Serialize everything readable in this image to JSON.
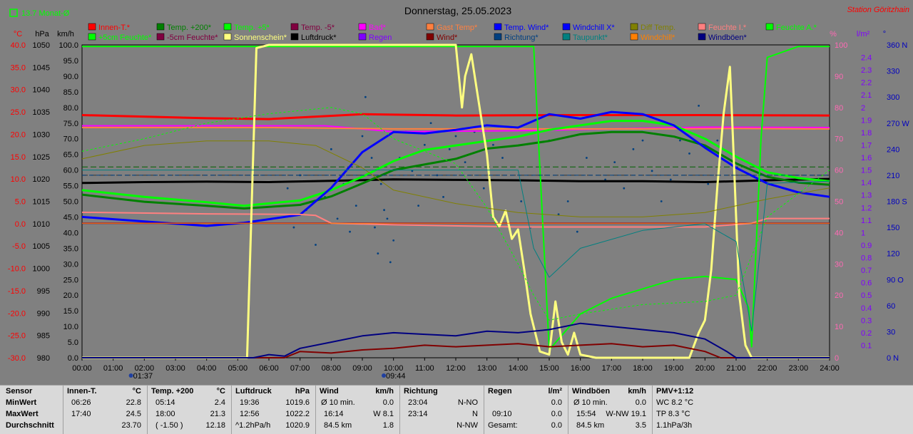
{
  "header": {
    "title": "Donnerstag, 25.05.2023",
    "station": "Station Göritzhain",
    "indicator": "13.7 Monat-Ø"
  },
  "chart_data": {
    "type": "line",
    "title": "Donnerstag, 25.05.2023",
    "x_ticks": [
      "00:00",
      "01:00",
      "02:00",
      "03:00",
      "04:00",
      "05:00",
      "06:00",
      "07:00",
      "08:00",
      "09:00",
      "10:00",
      "11:00",
      "12:00",
      "13:00",
      "14:00",
      "15:00",
      "16:00",
      "17:00",
      "18:00",
      "19:00",
      "20:00",
      "21:00",
      "22:00",
      "23:00",
      "24:00"
    ],
    "x_markers": [
      "01:37",
      "09:44"
    ],
    "axes": {
      "temp": {
        "unit": "°C",
        "min": -30,
        "max": 40,
        "ticks": [
          "40.0",
          "35.0",
          "30.0",
          "25.0",
          "20.0",
          "15.0",
          "10.0",
          "5.0",
          "0.0",
          "-5.0",
          "-10.0",
          "-15.0",
          "-20.0",
          "-25.0",
          "-30.0"
        ],
        "color": "#ff0000"
      },
      "pressure": {
        "unit": "hPa",
        "min": 980,
        "max": 1050,
        "ticks": [
          "1050",
          "1045",
          "1040",
          "1035",
          "1030",
          "1025",
          "1020",
          "1015",
          "1010",
          "1005",
          "1000",
          "995",
          "990",
          "985",
          "980"
        ],
        "color": "#000000"
      },
      "speed": {
        "unit": "km/h",
        "min": 0,
        "max": 100,
        "ticks": [
          "100.0",
          "95.0",
          "90.0",
          "85.0",
          "80.0",
          "75.0",
          "70.0",
          "65.0",
          "60.0",
          "55.0",
          "50.0",
          "45.0",
          "40.0",
          "35.0",
          "30.0",
          "25.0",
          "20.0",
          "15.0",
          "10.0",
          "5.0",
          "0.0"
        ],
        "color": "#000000"
      },
      "percent": {
        "unit": "%",
        "min": 0,
        "max": 100,
        "ticks": [
          "100",
          "90",
          "80",
          "70",
          "60",
          "50",
          "40",
          "30",
          "20",
          "10",
          "0"
        ],
        "color": "#ff69b4"
      },
      "rain": {
        "unit": "l/m²",
        "min": 0,
        "max": 2.5,
        "ticks": [
          "2.4",
          "2.3",
          "2.2",
          "2.1",
          "2",
          "1.9",
          "1.8",
          "1.7",
          "1.6",
          "1.5",
          "1.4",
          "1.3",
          "1.2",
          "1.1",
          "1",
          "0.9",
          "0.8",
          "0.7",
          "0.6",
          "0.5",
          "0.4",
          "0.3",
          "0.2",
          "0.1"
        ],
        "color": "#8000ff"
      },
      "direction": {
        "unit": "°",
        "min": 0,
        "max": 360,
        "ticks": [
          "360 N",
          "330",
          "300",
          "270 W",
          "240",
          "210",
          "180 S",
          "150",
          "120",
          "90 O",
          "60",
          "30",
          "0 N"
        ],
        "color": "#0000c0"
      }
    },
    "legend": [
      {
        "name": "Innen-T.*",
        "color": "#ff0000"
      },
      {
        "name": "Temp. +200*",
        "color": "#008000"
      },
      {
        "name": "Temp. +5*",
        "color": "#00ff00"
      },
      {
        "name": "Temp. -5*",
        "color": "#800040"
      },
      {
        "name": "Bad*",
        "color": "#ff00ff"
      },
      {
        "name": "Gast Temp*",
        "color": "#ff8040"
      },
      {
        "name": "Temp. Wind*",
        "color": "#0000ff"
      },
      {
        "name": "Windchill X*",
        "color": "#0000ff"
      },
      {
        "name": "Diff Temp.",
        "color": "#808000"
      },
      {
        "name": "Feuchte I.*",
        "color": "#ff8080"
      },
      {
        "name": "Feuchte A.*",
        "color": "#00ff00"
      },
      {
        "name": "+5cm Feuchte*",
        "color": "#00ff00"
      },
      {
        "name": "-5cm Feuchte*",
        "color": "#800040"
      },
      {
        "name": "Sonnenschein*",
        "color": "#ffff80"
      },
      {
        "name": "Luftdruck*",
        "color": "#000000"
      },
      {
        "name": "Regen",
        "color": "#8000ff"
      },
      {
        "name": "Wind*",
        "color": "#800000"
      },
      {
        "name": "Richtung*",
        "color": "#004080"
      },
      {
        "name": "Taupunkt*",
        "color": "#008080"
      },
      {
        "name": "Windchill*",
        "color": "#ff8000"
      },
      {
        "name": "Windböen*",
        "color": "#000080"
      }
    ],
    "series": [
      {
        "name": "Innen-T.*",
        "axis": "temp",
        "color": "#ff0000",
        "width": 3,
        "x": [
          0,
          4,
          6,
          9,
          12,
          16,
          20,
          24
        ],
        "y": [
          24.3,
          23.6,
          23.4,
          24.5,
          24.2,
          24.3,
          24.3,
          24.2
        ]
      },
      {
        "name": "Bad*",
        "axis": "temp",
        "color": "#ff00ff",
        "width": 2,
        "x": [
          0,
          6,
          7.8,
          10,
          14,
          20,
          24
        ],
        "y": [
          21.9,
          21.9,
          21.9,
          20.6,
          20.8,
          21.6,
          21.5
        ]
      },
      {
        "name": "Gast Temp*",
        "axis": "temp",
        "color": "#ff8040",
        "width": 2,
        "x": [
          0,
          6,
          10,
          14,
          18,
          21,
          24
        ],
        "y": [
          21.5,
          21.5,
          21.2,
          21.2,
          21.2,
          21.3,
          21.2
        ]
      },
      {
        "name": "Luftdruck*",
        "axis": "pressure",
        "color": "#000000",
        "width": 3,
        "x": [
          0,
          2,
          4,
          6,
          8,
          10,
          12,
          14,
          16,
          18,
          20,
          22,
          24
        ],
        "y": [
          1019.1,
          1019.3,
          1019.4,
          1019.3,
          1019.6,
          1019.9,
          1019.8,
          1019.7,
          1019.5,
          1019.5,
          1019.3,
          1019.7,
          1020.0
        ]
      },
      {
        "name": "Temp. +200*",
        "axis": "temp",
        "color": "#008000",
        "width": 3,
        "x": [
          0,
          2,
          4,
          5.2,
          7,
          8,
          9,
          10,
          12,
          13,
          14,
          15,
          16,
          17,
          18,
          19,
          20,
          21,
          22,
          23,
          24
        ],
        "y": [
          6.5,
          4.9,
          4.0,
          3.4,
          4.2,
          6.1,
          9.0,
          12.0,
          14.5,
          16.8,
          17.5,
          18.5,
          20.0,
          20.5,
          20.5,
          19.5,
          17.5,
          13.5,
          10.5,
          9.2,
          8.7
        ]
      },
      {
        "name": "Temp. +5*",
        "axis": "temp",
        "color": "#00ff00",
        "width": 3,
        "x": [
          0,
          2,
          4,
          5.2,
          7,
          8,
          9,
          10,
          11,
          12,
          13,
          14,
          15,
          16,
          17,
          18,
          19,
          20,
          21,
          22,
          23,
          24
        ],
        "y": [
          7.5,
          6.0,
          4.8,
          4.0,
          5.2,
          7.5,
          10.5,
          14.0,
          16.5,
          17.5,
          18.5,
          19.5,
          21.0,
          22.0,
          23.0,
          23.0,
          22.0,
          19.0,
          15.0,
          11.5,
          10.2,
          9.5
        ]
      },
      {
        "name": "Temp. Wind*",
        "axis": "temp",
        "color": "#0000ff",
        "width": 3,
        "x": [
          0,
          2,
          4,
          5.2,
          7,
          8,
          9,
          10,
          11,
          12,
          13,
          14,
          15,
          16,
          17,
          18,
          19,
          20,
          21,
          22,
          23,
          24
        ],
        "y": [
          1.5,
          0.5,
          -0.5,
          0.2,
          2.0,
          8.0,
          16.0,
          20.5,
          20.2,
          21.0,
          22.0,
          21.5,
          24.5,
          23.5,
          25.0,
          24.5,
          22.0,
          17.0,
          12.5,
          9.0,
          7.0,
          6.0
        ]
      },
      {
        "name": "Temp. -5*",
        "axis": "temp",
        "color": "#800040",
        "width": 2,
        "x": [
          0,
          24
        ],
        "y": [
          0.1,
          0.1
        ]
      },
      {
        "name": "Feuchte I.*",
        "axis": "percent",
        "color": "#ff8080",
        "width": 2,
        "x": [
          0,
          4,
          7,
          7.5,
          8,
          10,
          14,
          20,
          21.5,
          22,
          24
        ],
        "y": [
          46.5,
          46.0,
          45.8,
          45.5,
          43.0,
          42.5,
          41.8,
          41.8,
          43.0,
          44.5,
          44.5
        ]
      },
      {
        "name": "Feuchte A.*",
        "axis": "percent",
        "color": "#00ff00",
        "width": 2,
        "x": [
          0,
          14.5,
          15,
          16,
          17,
          18,
          19,
          20,
          21,
          21.4,
          21.5,
          21.8,
          22,
          23,
          24
        ],
        "y": [
          99.5,
          99.5,
          2.5,
          14.0,
          19.0,
          22.0,
          25.0,
          26.0,
          25.0,
          16.0,
          3.5,
          70.0,
          96.0,
          99.5,
          99.5
        ]
      },
      {
        "name": "Sonnenschein*",
        "axis": "percent",
        "color": "#ffff80",
        "width": 3,
        "x": [
          0,
          5.3,
          5.6,
          6,
          12,
          12.2,
          12.3,
          12.5,
          12.7,
          13,
          13.2,
          13.4,
          13.6,
          13.8,
          14,
          14.2,
          14.4,
          14.7,
          15,
          15.2,
          15.4,
          15.6,
          15.8,
          16,
          16.5,
          19.5,
          19.8,
          20,
          20.2,
          20.4,
          20.6,
          20.8,
          20.9,
          21,
          21.1,
          21.3,
          21.5,
          24
        ],
        "y": [
          0,
          0,
          99,
          100,
          100,
          80,
          90,
          97,
          84,
          65,
          45,
          42,
          47,
          38,
          41,
          28,
          14,
          2,
          1,
          18,
          5,
          1,
          8,
          1,
          0,
          0,
          8,
          12,
          28,
          55,
          78,
          93,
          70,
          45,
          20,
          4,
          0,
          0
        ]
      },
      {
        "name": "Wind*",
        "axis": "speed",
        "color": "#800000",
        "width": 2,
        "x": [
          0,
          6.5,
          7,
          8,
          9,
          10,
          11,
          12,
          13,
          14,
          15,
          16,
          17,
          18,
          19,
          20,
          20.5,
          24
        ],
        "y": [
          0,
          0,
          2,
          1.5,
          2.5,
          3,
          4,
          3.5,
          4,
          4.5,
          3.5,
          4,
          4.5,
          3.5,
          4,
          2,
          0,
          0
        ]
      },
      {
        "name": "Windböen*",
        "axis": "speed",
        "color": "#000080",
        "width": 2,
        "x": [
          0,
          5.5,
          6,
          6.5,
          7,
          8,
          9,
          10,
          11,
          12,
          13,
          14,
          15,
          16,
          17,
          18,
          19,
          20,
          20.7,
          21,
          24
        ],
        "y": [
          0,
          0,
          1,
          0.5,
          3,
          5,
          7,
          8,
          7.5,
          7,
          8.5,
          8,
          9,
          11,
          10,
          9,
          8,
          6,
          2,
          0,
          0
        ]
      },
      {
        "name": "Windchill*",
        "axis": "temp",
        "color": "#ff8000",
        "width": 1,
        "x": [
          0,
          24
        ],
        "y": [
          0.1,
          0.1
        ]
      },
      {
        "name": "Diff Temp.",
        "axis": "temp",
        "color": "#808000",
        "width": 1,
        "dash": "",
        "x": [
          0,
          2,
          4,
          6,
          7.5,
          9,
          10,
          12,
          14,
          16,
          18,
          20,
          22,
          24
        ],
        "y": [
          14.5,
          17.5,
          18.5,
          18.5,
          17.5,
          12.5,
          7.5,
          4.5,
          2.5,
          1.5,
          1.5,
          2.5,
          5.5,
          8.0
        ]
      },
      {
        "name": "+5cm Feuchte*",
        "axis": "percent",
        "color": "#00ff00",
        "width": 1,
        "dash": "3,3",
        "x": [
          0,
          2,
          4,
          6,
          8,
          9,
          10,
          12,
          13,
          14,
          14.5,
          15,
          16,
          18,
          20,
          21,
          22,
          24
        ],
        "y": [
          66,
          70,
          75,
          78,
          80,
          78,
          70,
          62,
          48,
          30,
          20,
          12,
          14,
          17,
          18,
          20,
          45,
          60
        ]
      },
      {
        "name": "Taupunkt*",
        "axis": "temp",
        "color": "#008080",
        "width": 1,
        "x": [
          0,
          14,
          14.5,
          15,
          16,
          18,
          20,
          21,
          21.5,
          22,
          24
        ],
        "y": [
          12.0,
          12.0,
          -5.5,
          -12.0,
          -5.5,
          -1.5,
          0,
          -4,
          -24,
          9,
          9.5
        ]
      },
      {
        "name": "Richtung*",
        "axis": "direction",
        "color": "#004080",
        "width": 1,
        "dash": "6,4",
        "x": [
          0,
          24
        ],
        "y": [
          210,
          210
        ]
      }
    ],
    "scatter": {
      "name": "Richtung points",
      "axis": "direction",
      "color": "#004080",
      "x": [
        6.6,
        6.8,
        7.0,
        7.2,
        7.5,
        7.8,
        8.0,
        8.2,
        8.4,
        8.6,
        8.8,
        9.0,
        9.1,
        9.2,
        9.3,
        9.4,
        9.5,
        9.6,
        9.7,
        9.8,
        9.9,
        10.0,
        10.2,
        10.4,
        10.6,
        10.8,
        11.0,
        11.2,
        11.4,
        11.6,
        11.8,
        12.0,
        12.3,
        12.6,
        12.9,
        13.2,
        13.5,
        13.8,
        14.1,
        14.4,
        14.7,
        15.0,
        15.3,
        15.6,
        15.9,
        16.2,
        16.5,
        16.8,
        17.1,
        17.4,
        17.7,
        18.0,
        18.3,
        18.6,
        18.9,
        19.2,
        19.5,
        19.8,
        20.1,
        20.4
      ],
      "y": [
        195,
        150,
        210,
        170,
        130,
        185,
        240,
        160,
        200,
        145,
        175,
        255,
        300,
        280,
        230,
        150,
        120,
        200,
        170,
        160,
        110,
        135,
        230,
        260,
        215,
        175,
        245,
        270,
        210,
        185,
        240,
        255,
        225,
        260,
        195,
        245,
        230,
        265,
        180,
        150,
        210,
        250,
        165,
        180,
        145,
        230,
        270,
        205,
        225,
        195,
        240,
        250,
        215,
        180,
        205,
        250,
        235,
        290,
        200,
        250
      ]
    }
  },
  "stats": {
    "sensor": {
      "header": "Sensor",
      "rows": [
        "MinWert",
        "MaxWert",
        "Durchschnitt"
      ]
    },
    "innen": {
      "header": "Innen-T.",
      "unit": "°C",
      "rows": [
        [
          "06:26",
          "22.8"
        ],
        [
          "17:40",
          "24.5"
        ],
        [
          "",
          "23.70"
        ]
      ]
    },
    "temp200": {
      "header": "Temp. +200",
      "unit": "°C",
      "rows": [
        [
          "05:14",
          "2.4"
        ],
        [
          "18:00",
          "21.3"
        ],
        [
          "( -1.50 )",
          "12.18"
        ]
      ]
    },
    "luftdruck": {
      "header": "Luftdruck",
      "unit": "hPa",
      "rows": [
        [
          "19:36",
          "1019.6"
        ],
        [
          "12:56",
          "1022.2"
        ],
        [
          "^1.2hPa/h",
          "1020.9"
        ]
      ]
    },
    "wind": {
      "header": "Wind",
      "unit": "km/h",
      "rows": [
        [
          "Ø 10 min.",
          "0.0"
        ],
        [
          "16:14",
          "W 8.1"
        ],
        [
          "84.5 km",
          "1.8"
        ]
      ]
    },
    "richtung": {
      "header": "Richtung",
      "rows": [
        [
          "23:04",
          "N-NO"
        ],
        [
          "23:14",
          "N"
        ],
        [
          "",
          "N-NW"
        ]
      ]
    },
    "regen": {
      "header": "Regen",
      "unit": "l/m²",
      "rows": [
        [
          "",
          "0.0"
        ],
        [
          "09:10",
          "0.0"
        ],
        [
          "Gesamt:",
          "0.0"
        ]
      ]
    },
    "windboeen": {
      "header": "Windböen",
      "unit": "km/h",
      "rows": [
        [
          "Ø 10 min.",
          "0.0"
        ],
        [
          "15:54",
          "W-NW 19.1"
        ],
        [
          "84.5 km",
          "3.5"
        ]
      ]
    },
    "pmv": {
      "header": "PMV+1:12",
      "rows": [
        "WC 8.2 °C",
        "TP 8.3 °C",
        "1.1hPa/3h"
      ]
    }
  }
}
